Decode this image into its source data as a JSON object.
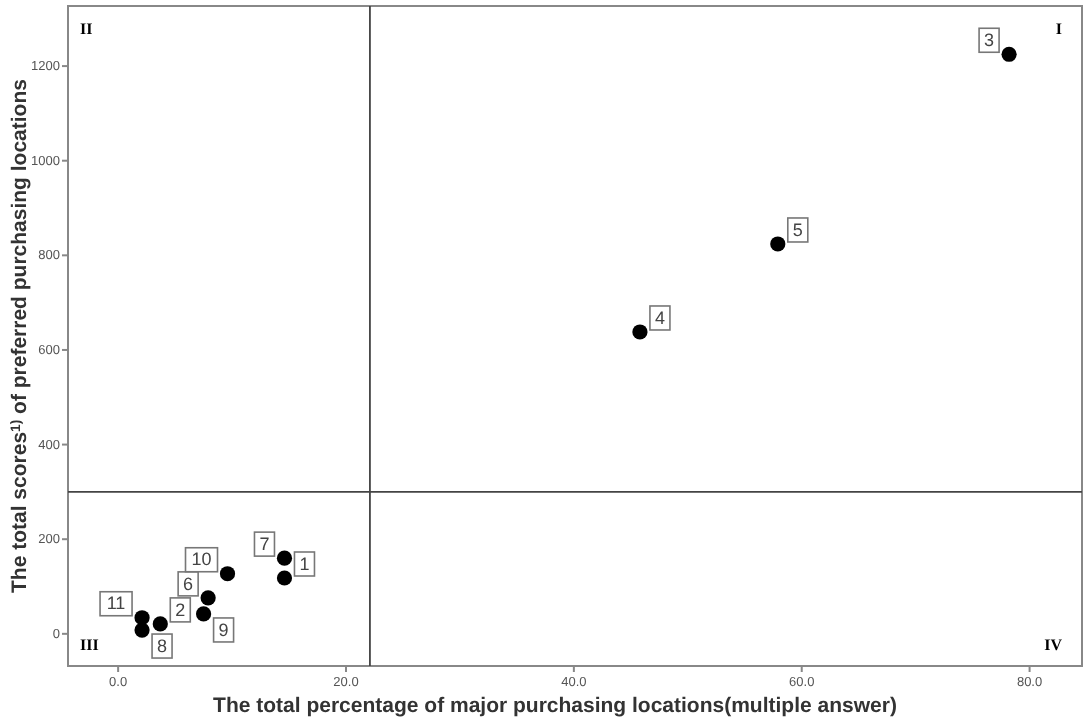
{
  "chart_data": {
    "type": "scatter",
    "xlabel": "The total percentage of major purchasing locations(multiple answer)",
    "ylabel": "The total scores$^{1)}$ of preferred purchasing locations",
    "x": [
      14.6,
      3.7,
      78.2,
      45.8,
      57.9,
      7.9,
      14.6,
      2.1,
      7.5,
      9.6,
      2.1
    ],
    "values": [
      118,
      21,
      1225,
      638,
      824,
      76,
      160,
      8,
      42,
      127,
      34
    ],
    "color": "#000000",
    "marker": "circle",
    "grid": false,
    "xlim": [
      -4.4,
      84.6
    ],
    "ylim": [
      -68,
      1327
    ],
    "xticks": [
      {
        "value": 0,
        "label": "0.0"
      },
      {
        "value": 20,
        "label": "20.0"
      },
      {
        "value": 40,
        "label": "40.0"
      },
      {
        "value": 60,
        "label": "60.0"
      },
      {
        "value": 80,
        "label": "80.0"
      }
    ],
    "yticks": [
      0,
      200,
      400,
      600,
      800,
      1000,
      1200
    ],
    "ref_lines": [
      {
        "axis": "x",
        "value": 22.1
      },
      {
        "axis": "y",
        "value": 300
      }
    ],
    "annotations": [
      {
        "text": "1",
        "x": 14.6,
        "y": 118
      },
      {
        "text": "2",
        "x": 3.7,
        "y": 21
      },
      {
        "text": "3",
        "x": 78.2,
        "y": 1225
      },
      {
        "text": "4",
        "x": 45.8,
        "y": 638
      },
      {
        "text": "5",
        "x": 57.9,
        "y": 824
      },
      {
        "text": "6",
        "x": 7.9,
        "y": 76
      },
      {
        "text": "7",
        "x": 14.6,
        "y": 160
      },
      {
        "text": "8",
        "x": 2.1,
        "y": 8
      },
      {
        "text": "9",
        "x": 7.5,
        "y": 42
      },
      {
        "text": "10",
        "x": 9.6,
        "y": 127
      },
      {
        "text": "11",
        "x": 2.1,
        "y": 34
      },
      "I",
      "II",
      "III",
      "IV"
    ]
  }
}
